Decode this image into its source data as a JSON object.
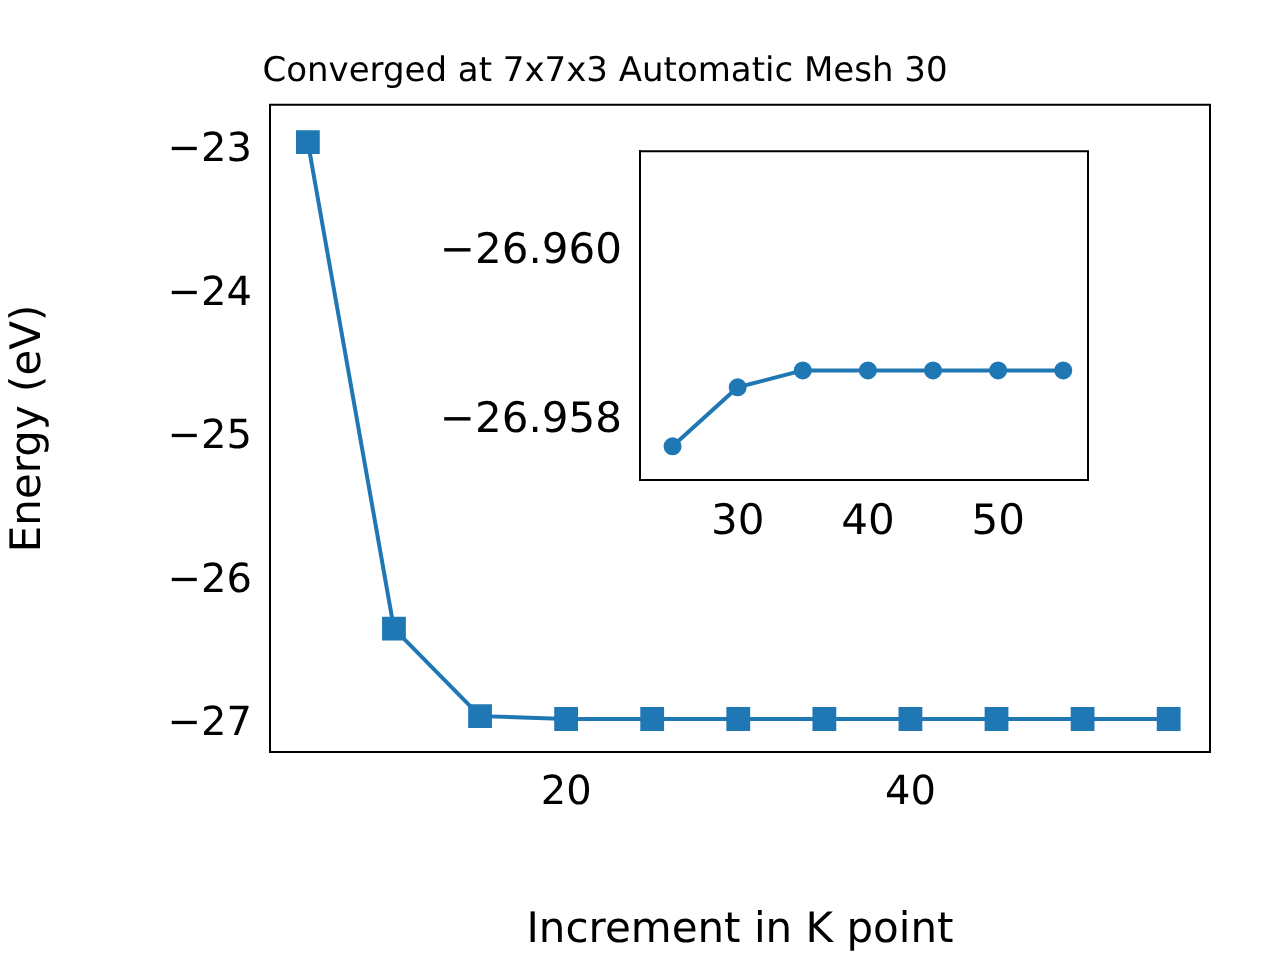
{
  "chart_data": [
    {
      "type": "line",
      "title": "Converged at 7x7x3 Automatic Mesh 30",
      "xlabel": "Increment in K point",
      "ylabel": "Energy (eV)",
      "x": [
        5,
        10,
        15,
        20,
        25,
        30,
        35,
        40,
        45,
        50,
        55
      ],
      "series": [
        {
          "color": "#1f77b4",
          "values": [
            -22.94,
            -26.33,
            -26.94,
            -26.96,
            -26.96,
            -26.96,
            -26.96,
            -26.96,
            -26.96,
            -26.96,
            -26.96
          ]
        }
      ],
      "xlim": [
        2.8,
        57.4
      ],
      "ylim": [
        -27.19,
        -22.68
      ],
      "xticks": [
        20,
        40
      ],
      "yticks": [
        {
          "value": -27,
          "label": "−27"
        },
        {
          "value": -26,
          "label": "−26"
        },
        {
          "value": -25,
          "label": "−25"
        },
        {
          "value": -24,
          "label": "−24"
        },
        {
          "value": -23,
          "label": "−23"
        }
      ],
      "marker": "square",
      "grid": false,
      "legend": false
    },
    {
      "type": "line",
      "x": [
        25,
        30,
        35,
        40,
        45,
        50,
        55
      ],
      "series": [
        {
          "color": "#1f77b4",
          "values": [
            -26.9577,
            -26.9584,
            -26.9586,
            -26.9586,
            -26.9586,
            -26.9586,
            -26.9586
          ]
        }
      ],
      "xlim": [
        22.5,
        56.9
      ],
      "ylim": [
        -26.9573,
        -26.9612
      ],
      "xticks": [
        30,
        40,
        50
      ],
      "yticks": [
        {
          "value": -26.958,
          "label": "−26.958"
        },
        {
          "value": -26.96,
          "label": "−26.960"
        }
      ],
      "marker": "circle",
      "grid": false,
      "legend": false
    }
  ]
}
